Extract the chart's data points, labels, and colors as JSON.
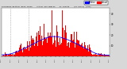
{
  "title": "Milwaukee Weather Wind Speed  Actual and Median  by Minute  (24 Hours) (Old)",
  "bg_color": "#d8d8d8",
  "plot_bg_color": "#ffffff",
  "bar_color": "#ff0000",
  "median_color": "#0000ff",
  "legend_actual_label": "Actual",
  "legend_median_label": "Median",
  "n_minutes": 1440,
  "ylim": [
    0,
    45
  ],
  "yticks": [
    10,
    20,
    30,
    40
  ],
  "ytick_labels": [
    "10",
    "20",
    "30",
    "40"
  ],
  "dotted_vlines": [
    120,
    360
  ],
  "seed": 42
}
